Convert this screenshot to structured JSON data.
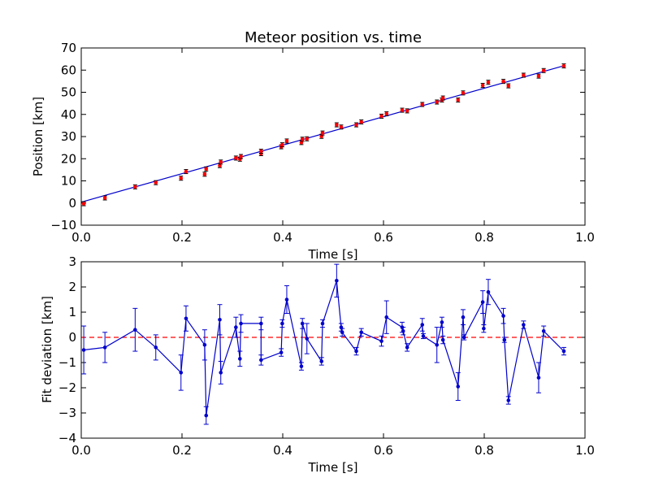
{
  "chart_data": [
    {
      "type": "scatter",
      "title": "Meteor position vs. time",
      "xlabel": "Time [s]",
      "ylabel": "Position [km]",
      "xlim": [
        0.0,
        1.0
      ],
      "ylim": [
        -10,
        70
      ],
      "xticks": [
        "0.0",
        "0.2",
        "0.4",
        "0.6",
        "0.8",
        "1.0"
      ],
      "yticks": [
        "−10",
        "0",
        "10",
        "20",
        "30",
        "40",
        "50",
        "60",
        "70"
      ],
      "colors": {
        "points": "#ff0000",
        "fit_line": "#0000cc"
      },
      "fit_line": {
        "x": [
          0.0,
          0.96
        ],
        "y": [
          0.4,
          62.1
        ]
      },
      "series": [
        {
          "x": [
            0.005,
            0.047,
            0.107,
            0.148,
            0.198,
            0.208,
            0.245,
            0.248,
            0.275,
            0.277,
            0.307,
            0.315,
            0.317,
            0.357,
            0.357,
            0.397,
            0.399,
            0.408,
            0.437,
            0.439,
            0.448,
            0.477,
            0.479,
            0.507,
            0.516,
            0.546,
            0.556,
            0.596,
            0.606,
            0.637,
            0.647,
            0.677,
            0.706,
            0.716,
            0.718,
            0.748,
            0.758,
            0.797,
            0.808,
            0.838,
            0.848,
            0.878,
            0.908,
            0.918,
            0.958
          ],
          "y": [
            -0.3,
            2.3,
            7.3,
            9.2,
            11.2,
            14.2,
            13.0,
            15.4,
            16.9,
            18.5,
            20.3,
            19.8,
            21.0,
            22.3,
            23.4,
            25.4,
            26.3,
            28.0,
            27.3,
            28.8,
            29.0,
            30.1,
            31.6,
            35.3,
            34.3,
            35.3,
            36.6,
            39.2,
            40.3,
            41.9,
            41.6,
            44.5,
            45.6,
            46.5,
            47.4,
            46.5,
            49.7,
            53.1,
            54.5,
            54.9,
            52.9,
            57.7,
            57.3,
            59.8,
            61.9
          ]
        }
      ]
    },
    {
      "type": "line",
      "title": "",
      "xlabel": "Time [s]",
      "ylabel": "Fit deviation [km]",
      "xlim": [
        0.0,
        1.0
      ],
      "ylim": [
        -4,
        3
      ],
      "xticks": [
        "0.0",
        "0.2",
        "0.4",
        "0.6",
        "0.8",
        "1.0"
      ],
      "yticks": [
        "−4",
        "−3",
        "−2",
        "−1",
        "0",
        "1",
        "2",
        "3"
      ],
      "colors": {
        "series": "#0000cc",
        "reference": "#ff0000"
      },
      "reference_line": 0,
      "series": [
        {
          "x": [
            0.005,
            0.047,
            0.107,
            0.148,
            0.198,
            0.208,
            0.245,
            0.248,
            0.275,
            0.277,
            0.307,
            0.315,
            0.317,
            0.357,
            0.357,
            0.397,
            0.399,
            0.408,
            0.437,
            0.439,
            0.448,
            0.477,
            0.479,
            0.507,
            0.516,
            0.518,
            0.546,
            0.556,
            0.596,
            0.606,
            0.637,
            0.639,
            0.647,
            0.677,
            0.679,
            0.706,
            0.716,
            0.718,
            0.748,
            0.758,
            0.76,
            0.797,
            0.799,
            0.808,
            0.838,
            0.84,
            0.848,
            0.878,
            0.908,
            0.918,
            0.958
          ],
          "y": [
            -0.5,
            -0.4,
            0.3,
            -0.4,
            -1.4,
            0.75,
            -0.3,
            -3.1,
            0.7,
            -1.4,
            0.4,
            -0.85,
            0.55,
            0.55,
            -0.9,
            -0.6,
            0.55,
            1.5,
            -1.15,
            0.55,
            -0.05,
            -0.95,
            0.55,
            2.25,
            0.4,
            0.2,
            -0.55,
            0.2,
            -0.15,
            0.8,
            0.4,
            0.25,
            -0.4,
            0.5,
            0.05,
            -0.3,
            0.6,
            -0.1,
            -1.95,
            0.8,
            0.0,
            1.4,
            0.35,
            1.8,
            0.85,
            -0.1,
            -2.5,
            0.5,
            -1.6,
            0.25,
            -0.55
          ],
          "err": [
            0.95,
            0.6,
            0.85,
            0.5,
            0.7,
            0.5,
            0.6,
            0.35,
            0.6,
            0.45,
            0.4,
            0.3,
            0.35,
            0.25,
            0.2,
            0.15,
            0.15,
            0.55,
            0.15,
            0.2,
            0.6,
            0.15,
            0.15,
            0.65,
            0.15,
            0.15,
            0.15,
            0.15,
            0.2,
            0.65,
            0.2,
            0.15,
            0.15,
            0.25,
            0.1,
            0.7,
            0.2,
            0.15,
            0.55,
            0.3,
            0.1,
            0.45,
            0.15,
            0.5,
            0.3,
            0.1,
            0.15,
            0.15,
            0.6,
            0.2,
            0.15
          ]
        }
      ]
    }
  ]
}
